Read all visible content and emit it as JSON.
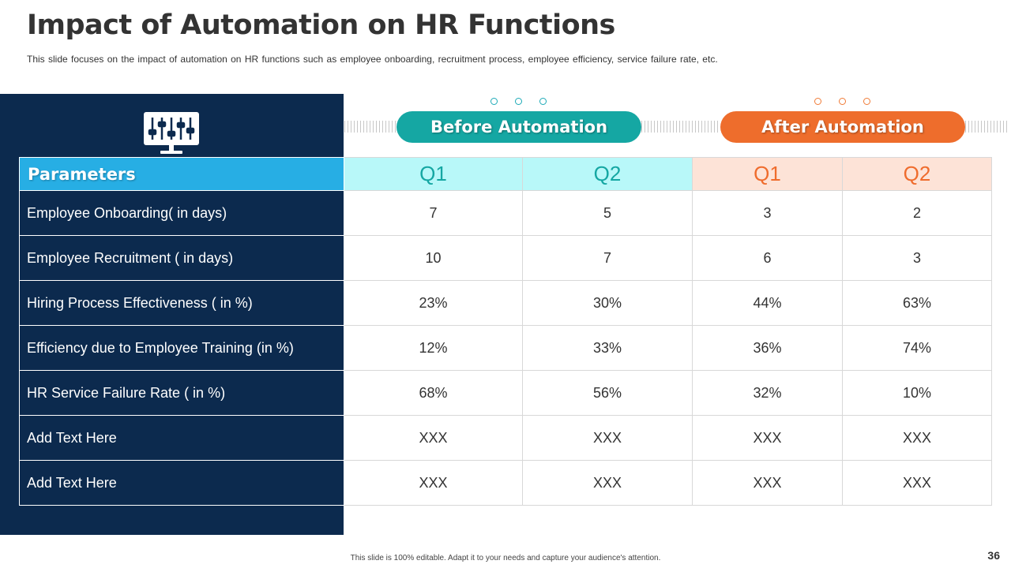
{
  "slide": {
    "title": "Impact of Automation on HR Functions",
    "subtitle": "This slide focuses on the impact of automation on HR functions such as employee onboarding, recruitment process, employee efficiency, service failure rate, etc.",
    "footer_note": "This slide is 100% editable. Adapt it to your needs and capture your audience's attention.",
    "page_number": "36"
  },
  "icons": {
    "header_icon": "monitor-sliders-icon"
  },
  "groups": {
    "before_label": "Before Automation",
    "after_label": "After Automation"
  },
  "colors": {
    "navy": "#0c2a4e",
    "teal": "#15a7a3",
    "orange": "#ee6d2c",
    "param_header_blue": "#27aee4",
    "q_before_bg": "#b8f8f9",
    "q_after_bg": "#fde3d7"
  },
  "table": {
    "header": [
      "Parameters",
      "Q1",
      "Q2",
      "Q1",
      "Q2"
    ],
    "rows": [
      {
        "label": "Employee Onboarding( in days)",
        "values": [
          "7",
          "5",
          "3",
          "2"
        ]
      },
      {
        "label": "Employee Recruitment ( in days)",
        "values": [
          "10",
          "7",
          "6",
          "3"
        ]
      },
      {
        "label": "Hiring Process Effectiveness ( in %)",
        "values": [
          "23%",
          "30%",
          "44%",
          "63%"
        ]
      },
      {
        "label": "Efficiency due to Employee Training (in %)",
        "values": [
          "12%",
          "33%",
          "36%",
          "74%"
        ]
      },
      {
        "label": "HR Service Failure Rate ( in %)",
        "values": [
          "68%",
          "56%",
          "32%",
          "10%"
        ]
      },
      {
        "label": "Add Text Here",
        "values": [
          "XXX",
          "XXX",
          "XXX",
          "XXX"
        ]
      },
      {
        "label": "Add Text Here",
        "values": [
          "XXX",
          "XXX",
          "XXX",
          "XXX"
        ]
      }
    ]
  }
}
